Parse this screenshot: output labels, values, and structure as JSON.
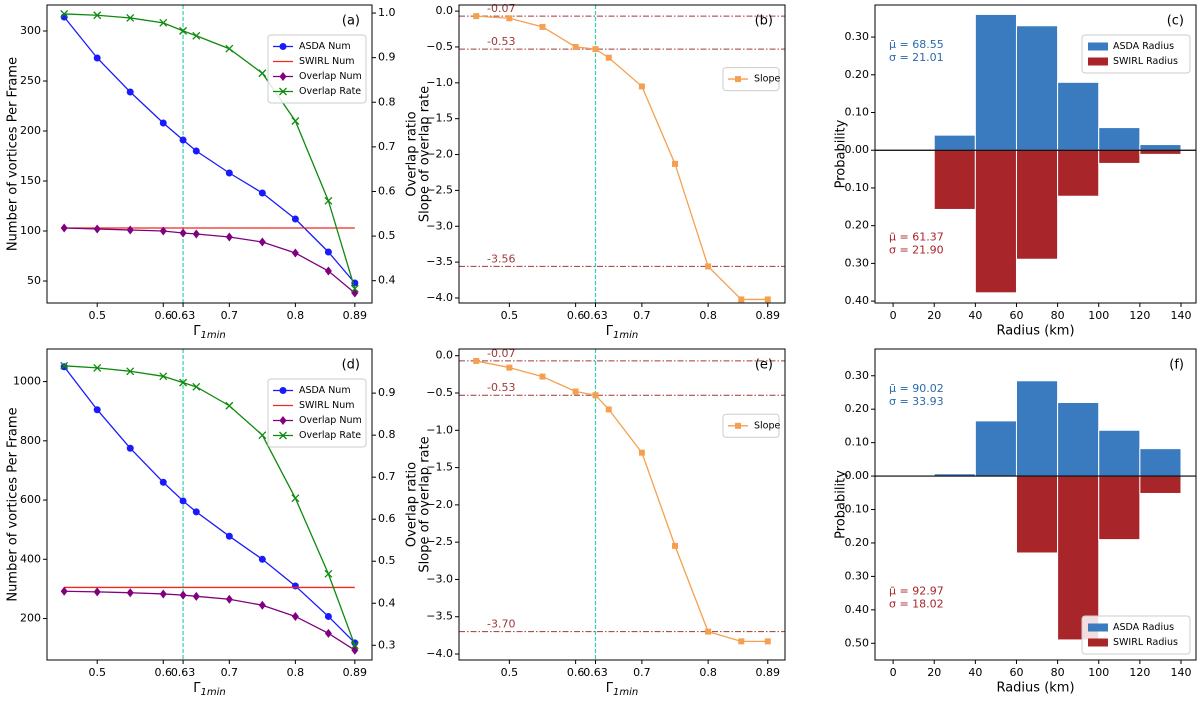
{
  "chart_data": [
    {
      "type": "line",
      "label": "(a)",
      "xlabel": {
        "symbol": "Γ",
        "subscript": "1min"
      },
      "ylabel": "Number of vortices Per Frame",
      "y2label": "Overlap ratio",
      "x": [
        0.45,
        0.5,
        0.55,
        0.6,
        0.63,
        0.65,
        0.7,
        0.75,
        0.8,
        0.85,
        0.89
      ],
      "xlim": [
        0.424,
        0.916
      ],
      "xticks": [
        0.5,
        0.6,
        0.63,
        0.7,
        0.8,
        0.89
      ],
      "ylim": [
        28,
        326
      ],
      "yticks": [
        50,
        100,
        150,
        200,
        250,
        300
      ],
      "y2lim": [
        0.35,
        1.018
      ],
      "y2ticks": [
        0.4,
        0.5,
        0.6,
        0.7,
        0.8,
        0.9,
        {
          "value": 1,
          "label": "1.0"
        }
      ],
      "vline": {
        "value": 0.63,
        "color": "#2fd1b0"
      },
      "legend": "upper right",
      "series": [
        {
          "name": "ASDA Num",
          "color": "#1a1aff",
          "marker": "circle",
          "values": [
            314,
            273,
            239,
            208,
            191,
            180,
            158,
            138,
            112,
            79,
            48
          ]
        },
        {
          "name": "SWIRL Num",
          "color": "#f0281e",
          "marker": "none",
          "values": [
            103,
            103,
            103,
            103,
            103,
            103,
            103,
            103,
            103,
            103,
            103
          ]
        },
        {
          "name": "Overlap Num",
          "color": "#800080",
          "marker": "diamond",
          "values": [
            103,
            102,
            101,
            100,
            98,
            97,
            94,
            89,
            78,
            60,
            38
          ]
        },
        {
          "name": "Overlap Rate",
          "color": "#0e8a0e",
          "marker": "x",
          "axis": "y2",
          "values": [
            0.998,
            0.995,
            0.989,
            0.978,
            0.96,
            0.949,
            0.92,
            0.865,
            0.758,
            0.579,
            0.382
          ]
        }
      ]
    },
    {
      "type": "line",
      "label": "(b)",
      "xlabel": {
        "symbol": "Γ",
        "subscript": "1min"
      },
      "ylabel": "Slope of overlap rate",
      "x": [
        0.45,
        0.5,
        0.55,
        0.6,
        0.63,
        0.65,
        0.7,
        0.75,
        0.8,
        0.85,
        0.89
      ],
      "xlim": [
        0.424,
        0.916
      ],
      "xticks": [
        0.5,
        0.6,
        0.63,
        0.7,
        0.8,
        0.89
      ],
      "ylim": [
        -4.07,
        0.085
      ],
      "yticks": [
        {
          "value": 0,
          "label": "0.0"
        },
        {
          "value": -0.5,
          "label": "−0.5"
        },
        {
          "value": -1,
          "label": "−1.0"
        },
        {
          "value": -1.5,
          "label": "−1.5"
        },
        {
          "value": -2,
          "label": "−2.0"
        },
        {
          "value": -2.5,
          "label": "−2.5"
        },
        {
          "value": -3,
          "label": "−3.0"
        },
        {
          "value": -3.5,
          "label": "−3.5"
        },
        {
          "value": -4,
          "label": "−4.0"
        }
      ],
      "vline": {
        "value": 0.63,
        "color": "#2fd1b0"
      },
      "legend": "center right",
      "hlines": [
        {
          "value": -0.07,
          "label": "-0.07"
        },
        {
          "value": -0.53,
          "label": "-0.53"
        },
        {
          "value": -3.56,
          "label": "-3.56"
        }
      ],
      "hline_color": "#a0393a",
      "series": [
        {
          "name": "Slope",
          "color": "#f5a050",
          "marker": "square",
          "values": [
            -0.07,
            -0.1,
            -0.22,
            -0.5,
            -0.53,
            -0.65,
            -1.05,
            -2.13,
            -3.56,
            -4.02,
            -4.02
          ]
        }
      ]
    },
    {
      "type": "histogram",
      "label": "(c)",
      "xlabel": "Radius (km)",
      "ylabel": "Probability",
      "bins": [
        20,
        40,
        60,
        80,
        100,
        120,
        140
      ],
      "xlim": [
        -8.8,
        147.3
      ],
      "xticks": [
        0,
        20,
        40,
        60,
        80,
        100,
        120,
        140
      ],
      "ylim": [
        -0.405,
        0.385
      ],
      "yticks": [
        {
          "value": 0.3,
          "label": "0.30"
        },
        {
          "value": 0.2,
          "label": "0.20"
        },
        {
          "value": 0.1,
          "label": "0.10"
        },
        {
          "value": 0,
          "label": "0.00"
        },
        {
          "value": -0.1,
          "label": "0.10"
        },
        {
          "value": -0.2,
          "label": "0.20"
        },
        {
          "value": -0.3,
          "label": "0.30"
        },
        {
          "value": -0.4,
          "label": "0.40"
        }
      ],
      "legend": "upper right",
      "series": [
        {
          "name": "ASDA Radius",
          "color": "#3a7bbf",
          "values": [
            0.04,
            0.36,
            0.33,
            0.18,
            0.06,
            0.015
          ]
        },
        {
          "name": "SWIRL Radius",
          "color": "#a8262a",
          "values": [
            -0.157,
            -0.378,
            -0.289,
            -0.122,
            -0.035,
            -0.011
          ]
        }
      ],
      "annotations": [
        {
          "lines": [
            "μ̄ = 68.55",
            "σ = 21.01"
          ],
          "color": "#2a6aaa"
        },
        {
          "lines": [
            "μ̄ = 61.37",
            "σ = 21.90"
          ],
          "color": "#a8262a"
        }
      ]
    },
    {
      "type": "line",
      "label": "(d)",
      "xlabel": {
        "symbol": "Γ",
        "subscript": "1min"
      },
      "ylabel": "Number of vortices Per Frame",
      "y2label": "Overlap ratio",
      "x": [
        0.45,
        0.5,
        0.55,
        0.6,
        0.63,
        0.65,
        0.7,
        0.75,
        0.8,
        0.85,
        0.89
      ],
      "xlim": [
        0.424,
        0.916
      ],
      "xticks": [
        0.5,
        0.6,
        0.63,
        0.7,
        0.8,
        0.89
      ],
      "ylim": [
        60,
        1110
      ],
      "yticks": [
        200,
        400,
        600,
        800,
        1000
      ],
      "y2lim": [
        0.265,
        1.005
      ],
      "y2ticks": [
        0.3,
        0.4,
        0.5,
        0.6,
        0.7,
        0.8,
        0.9
      ],
      "vline": {
        "value": 0.63,
        "color": "#2fd1b0"
      },
      "legend": "upper right",
      "series": [
        {
          "name": "ASDA Num",
          "color": "#1a1aff",
          "marker": "circle",
          "values": [
            1050,
            905,
            775,
            660,
            597,
            560,
            478,
            400,
            310,
            207,
            118
          ]
        },
        {
          "name": "SWIRL Num",
          "color": "#f0281e",
          "marker": "none",
          "values": [
            305,
            305,
            305,
            305,
            305,
            305,
            305,
            305,
            305,
            305,
            305
          ]
        },
        {
          "name": "Overlap Num",
          "color": "#800080",
          "marker": "diamond",
          "values": [
            292,
            290,
            287,
            283,
            279,
            275,
            265,
            245,
            207,
            150,
            93
          ]
        },
        {
          "name": "Overlap Rate",
          "color": "#0e8a0e",
          "marker": "x",
          "axis": "y2",
          "values": [
            0.965,
            0.96,
            0.952,
            0.94,
            0.925,
            0.915,
            0.87,
            0.8,
            0.65,
            0.47,
            0.3
          ]
        }
      ]
    },
    {
      "type": "line",
      "label": "(e)",
      "xlabel": {
        "symbol": "Γ",
        "subscript": "1min"
      },
      "ylabel": "Slope of overlap rate",
      "x": [
        0.45,
        0.5,
        0.55,
        0.6,
        0.63,
        0.65,
        0.7,
        0.75,
        0.8,
        0.85,
        0.89
      ],
      "xlim": [
        0.424,
        0.916
      ],
      "xticks": [
        0.5,
        0.6,
        0.63,
        0.7,
        0.8,
        0.89
      ],
      "ylim": [
        -4.08,
        0.09
      ],
      "yticks": [
        {
          "value": 0,
          "label": "0.0"
        },
        {
          "value": -0.5,
          "label": "−0.5"
        },
        {
          "value": -1,
          "label": "−1.0"
        },
        {
          "value": -1.5,
          "label": "−1.5"
        },
        {
          "value": -2,
          "label": "−2.0"
        },
        {
          "value": -2.5,
          "label": "−2.5"
        },
        {
          "value": -3,
          "label": "−3.0"
        },
        {
          "value": -3.5,
          "label": "−3.5"
        },
        {
          "value": -4,
          "label": "−4.0"
        }
      ],
      "vline": {
        "value": 0.63,
        "color": "#2fd1b0"
      },
      "legend": "center right",
      "hlines": [
        {
          "value": -0.07,
          "label": "-0.07"
        },
        {
          "value": -0.53,
          "label": "-0.53"
        },
        {
          "value": -3.7,
          "label": "-3.70"
        }
      ],
      "hline_color": "#a0393a",
      "series": [
        {
          "name": "Slope",
          "color": "#f5a050",
          "marker": "square",
          "values": [
            -0.07,
            -0.16,
            -0.28,
            -0.48,
            -0.53,
            -0.72,
            -1.3,
            -2.55,
            -3.7,
            -3.83,
            -3.83
          ]
        }
      ]
    },
    {
      "type": "histogram",
      "label": "(f)",
      "xlabel": "Radius (km)",
      "ylabel": "Probability",
      "bins": [
        20,
        40,
        60,
        80,
        100,
        120,
        140
      ],
      "xlim": [
        -8.8,
        147.3
      ],
      "xticks": [
        0,
        20,
        40,
        60,
        80,
        100,
        120,
        140
      ],
      "ylim": [
        -0.55,
        0.38
      ],
      "yticks": [
        {
          "value": 0.3,
          "label": "0.30"
        },
        {
          "value": 0.2,
          "label": "0.20"
        },
        {
          "value": 0.1,
          "label": "0.10"
        },
        {
          "value": 0,
          "label": "0.00"
        },
        {
          "value": -0.1,
          "label": "0.10"
        },
        {
          "value": -0.2,
          "label": "0.20"
        },
        {
          "value": -0.3,
          "label": "0.30"
        },
        {
          "value": -0.4,
          "label": "0.40"
        },
        {
          "value": -0.5,
          "label": "0.50"
        }
      ],
      "legend": "lower right",
      "series": [
        {
          "name": "ASDA Radius",
          "color": "#3a7bbf",
          "values": [
            0.007,
            0.165,
            0.285,
            0.22,
            0.137,
            0.082
          ]
        },
        {
          "name": "SWIRL Radius",
          "color": "#a8262a",
          "values": [
            0,
            0,
            -0.23,
            -0.49,
            -0.19,
            -0.052
          ]
        }
      ],
      "annotations": [
        {
          "lines": [
            "μ̄ = 90.02",
            "σ = 33.93"
          ],
          "color": "#2a6aaa"
        },
        {
          "lines": [
            "μ̄ = 92.97",
            "σ = 18.02"
          ],
          "color": "#a8262a"
        }
      ]
    }
  ]
}
